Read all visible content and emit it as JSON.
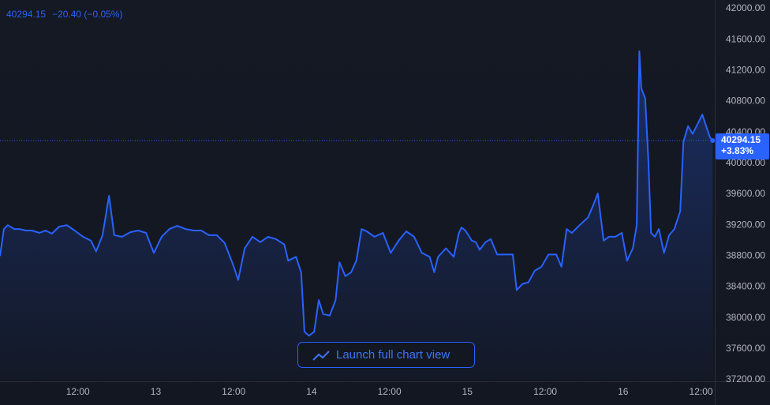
{
  "chart_data": {
    "type": "area",
    "last_value": 40294.15,
    "change_text": "−20.40 (−0.05%)",
    "change_pct_text": "+3.83%",
    "color": "#2962ff",
    "x": [
      0,
      0.6,
      1.2,
      2.2,
      3.0,
      4.0,
      4.9,
      6.1,
      7.0,
      8.0,
      9.1,
      10.3,
      11.5,
      12.8,
      14.0,
      14.8,
      15.8,
      16.8,
      17.6,
      18.8,
      20.1,
      21.3,
      22.5,
      23.7,
      24.9,
      26.1,
      27.3,
      28.6,
      29.8,
      31.0,
      32.2,
      33.4,
      34.6,
      35.9,
      36.7,
      37.7,
      38.9,
      40.1,
      41.3,
      42.5,
      43.8,
      44.4,
      45.6,
      46.4,
      46.9,
      47.6,
      48.4,
      49.1,
      49.8,
      50.8,
      51.7,
      52.3,
      53.2,
      54.1,
      54.9,
      55.7,
      56.5,
      57.7,
      59.0,
      60.2,
      61.4,
      62.6,
      63.8,
      65.0,
      66.2,
      66.9,
      67.5,
      68.7,
      69.9,
      70.7,
      71.1,
      71.7,
      72.7,
      73.3,
      73.9,
      74.8,
      75.6,
      76.6,
      77.8,
      79.0,
      79.6,
      80.5,
      81.4,
      82.4,
      83.4,
      84.5,
      85.7,
      86.5,
      87.3,
      88.1,
      89.3,
      90.6,
      91.4,
      92.1,
      93.0,
      93.8,
      94.8,
      95.8,
      96.6,
      97.5,
      98.1,
      98.5,
      98.8,
      99.4,
      99.9,
      100.3,
      100.9,
      101.5,
      102.3,
      103.1,
      103.9,
      104.8,
      105.3,
      106.0,
      106.7,
      107.6,
      108.2,
      108.8,
      109.4,
      109.8
    ],
    "values": [
      38800,
      39150,
      39200,
      39150,
      39150,
      39130,
      39130,
      39100,
      39130,
      39090,
      39180,
      39200,
      39130,
      39050,
      39000,
      38860,
      39070,
      39580,
      39070,
      39050,
      39110,
      39130,
      39100,
      38840,
      39050,
      39150,
      39190,
      39150,
      39130,
      39130,
      39070,
      39070,
      38970,
      38690,
      38490,
      38900,
      39050,
      38980,
      39050,
      39020,
      38950,
      38740,
      38790,
      38590,
      37820,
      37770,
      37820,
      38230,
      38050,
      38030,
      38230,
      38720,
      38540,
      38590,
      38740,
      39150,
      39120,
      39050,
      39100,
      38840,
      39000,
      39120,
      39050,
      38840,
      38790,
      38590,
      38790,
      38900,
      38790,
      39100,
      39170,
      39130,
      39000,
      38980,
      38880,
      38980,
      39020,
      38820,
      38820,
      38820,
      38360,
      38440,
      38460,
      38610,
      38660,
      38820,
      38820,
      38660,
      39150,
      39100,
      39200,
      39300,
      39460,
      39610,
      39000,
      39050,
      39050,
      39100,
      38740,
      38900,
      39200,
      41450,
      40970,
      40840,
      40020,
      39100,
      39050,
      39150,
      38840,
      39070,
      39150,
      39380,
      40280,
      40480,
      40380,
      40530,
      40630,
      40480,
      40330,
      40294.15
    ],
    "xlim": [
      0,
      110
    ],
    "ylim": [
      37200,
      42000
    ],
    "xticks": [
      {
        "value": 12,
        "label": "12:00"
      },
      {
        "value": 24,
        "label": "13"
      },
      {
        "value": 36,
        "label": "12:00"
      },
      {
        "value": 48,
        "label": "14"
      },
      {
        "value": 60,
        "label": "12:00"
      },
      {
        "value": 72,
        "label": "15"
      },
      {
        "value": 84,
        "label": "12:00"
      },
      {
        "value": 96,
        "label": "16"
      },
      {
        "value": 108,
        "label": "12:00"
      }
    ],
    "yticks": [
      {
        "value": 42000,
        "label": "42000.00"
      },
      {
        "value": 41600,
        "label": "41600.00"
      },
      {
        "value": 41200,
        "label": "41200.00"
      },
      {
        "value": 40800,
        "label": "40800.00"
      },
      {
        "value": 40400,
        "label": "40400.00"
      },
      {
        "value": 40000,
        "label": "40000.00"
      },
      {
        "value": 39600,
        "label": "39600.00"
      },
      {
        "value": 39200,
        "label": "39200.00"
      },
      {
        "value": 38800,
        "label": "38800.00"
      },
      {
        "value": 38400,
        "label": "38400.00"
      },
      {
        "value": 38000,
        "label": "38000.00"
      },
      {
        "value": 37600,
        "label": "37600.00"
      },
      {
        "value": 37200,
        "label": "37200.00"
      }
    ],
    "grid": false
  },
  "button": "Launch full chart view"
}
